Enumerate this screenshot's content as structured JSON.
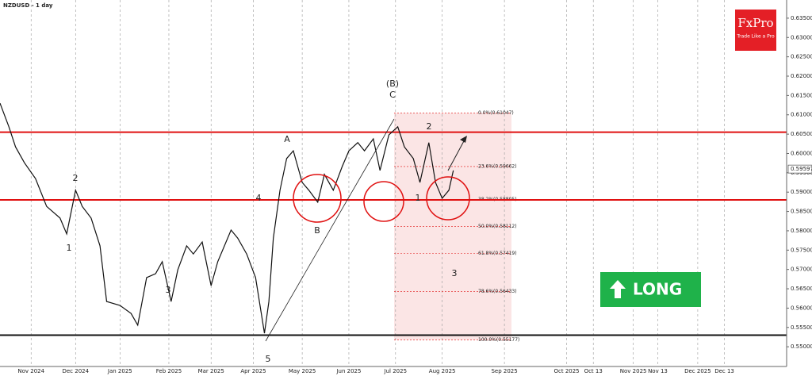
{
  "chart_data": {
    "type": "line",
    "title": "NZDUSD - 1 day",
    "series": [
      {
        "name": "NZDUSD",
        "color": "#111111",
        "x": [
          0,
          4,
          7,
          11,
          16,
          21,
          27,
          30,
          34,
          37,
          41,
          45,
          48,
          54,
          59,
          62,
          66,
          70,
          73,
          77,
          80,
          84,
          87,
          91,
          95,
          98,
          104,
          107,
          111,
          115,
          119,
          121,
          123,
          126,
          129,
          132,
          136,
          139,
          143,
          146,
          150,
          154,
          157,
          161,
          164,
          168,
          171,
          175,
          179,
          182,
          186,
          189,
          193,
          196,
          199,
          202,
          204
        ],
        "values": [
          0.613,
          0.6069,
          0.6017,
          0.5976,
          0.5935,
          0.5863,
          0.5833,
          0.5792,
          0.5905,
          0.5863,
          0.5833,
          0.5761,
          0.5617,
          0.5607,
          0.5586,
          0.5556,
          0.5679,
          0.5689,
          0.572,
          0.5617,
          0.5699,
          0.5761,
          0.574,
          0.5771,
          0.5658,
          0.572,
          0.5802,
          0.5781,
          0.574,
          0.5679,
          0.5535,
          0.5617,
          0.5781,
          0.5905,
          0.5987,
          0.6007,
          0.5925,
          0.5905,
          0.5874,
          0.5946,
          0.5905,
          0.5966,
          0.6007,
          0.6028,
          0.6007,
          0.6038,
          0.5956,
          0.6048,
          0.6069,
          0.6017,
          0.5987,
          0.5925,
          0.6028,
          0.5925,
          0.5884,
          0.5905,
          0.5956
        ]
      }
    ],
    "xlim": [
      0,
      354
    ],
    "xticks": [
      {
        "value": 14,
        "label": "Nov 2024"
      },
      {
        "value": 34,
        "label": "Dec 2024"
      },
      {
        "value": 54,
        "label": "Jan 2025"
      },
      {
        "value": 76,
        "label": "Feb 2025"
      },
      {
        "value": 95,
        "label": "Mar 2025"
      },
      {
        "value": 114,
        "label": "Apr 2025"
      },
      {
        "value": 136,
        "label": "May 2025"
      },
      {
        "value": 157,
        "label": "Jun 2025"
      },
      {
        "value": 178,
        "label": "Jul 2025"
      },
      {
        "value": 199,
        "label": "Aug 2025"
      },
      {
        "value": 227,
        "label": "Sep 2025"
      },
      {
        "value": 255,
        "label": "Oct 2025"
      },
      {
        "value": 267,
        "label": "Oct 13"
      },
      {
        "value": 285,
        "label": "Nov 2025"
      },
      {
        "value": 296,
        "label": "Nov 13"
      },
      {
        "value": 314,
        "label": "Dec 2025"
      },
      {
        "value": 326,
        "label": "Dec 13"
      }
    ],
    "ylim": [
      0.5449,
      0.6397
    ],
    "yticks": [
      {
        "value": 0.55,
        "label": "0.55000"
      },
      {
        "value": 0.555,
        "label": "0.55500"
      },
      {
        "value": 0.56,
        "label": "0.56000"
      },
      {
        "value": 0.565,
        "label": "0.56500"
      },
      {
        "value": 0.57,
        "label": "0.57000"
      },
      {
        "value": 0.575,
        "label": "0.57500"
      },
      {
        "value": 0.58,
        "label": "0.58000"
      },
      {
        "value": 0.585,
        "label": "0.58500"
      },
      {
        "value": 0.59,
        "label": "0.59000"
      },
      {
        "value": 0.595,
        "label": "0.59500"
      },
      {
        "value": 0.6,
        "label": "0.60000"
      },
      {
        "value": 0.605,
        "label": "0.60500"
      },
      {
        "value": 0.61,
        "label": "0.61000"
      },
      {
        "value": 0.615,
        "label": "0.61500"
      },
      {
        "value": 0.62,
        "label": "0.62000"
      },
      {
        "value": 0.625,
        "label": "0.62500"
      },
      {
        "value": 0.63,
        "label": "0.63000"
      },
      {
        "value": 0.635,
        "label": "0.63500"
      }
    ],
    "levels": [
      {
        "value": 0.6055,
        "color": "#e01010"
      },
      {
        "value": 0.588,
        "color": "#e01010"
      },
      {
        "value": 0.553,
        "color": "#111111"
      }
    ],
    "fib_levels": [
      {
        "value": 0.61047,
        "label": "0.0%(0.61047)"
      },
      {
        "value": 0.59662,
        "label": "23.6%(0.59662)"
      },
      {
        "value": 0.58805,
        "label": "38.2%(0.58805)"
      },
      {
        "value": 0.58112,
        "label": "50.0%(0.58112)"
      },
      {
        "value": 0.57419,
        "label": "61.8%(0.57419)"
      },
      {
        "value": 0.56433,
        "label": "78.6%(0.56433)"
      },
      {
        "value": 0.55177,
        "label": "100.0%(0.55177)"
      }
    ],
    "current_price": {
      "value": 0.59597,
      "label": "0.59597"
    },
    "annotations": [
      "(B)",
      "C",
      "A",
      "B",
      "4",
      "5",
      "1",
      "2",
      "3",
      "2",
      "1",
      "3"
    ],
    "signal": "LONG",
    "logo": {
      "brand": "FxPro",
      "tagline": "Trade Like a Pro"
    }
  }
}
